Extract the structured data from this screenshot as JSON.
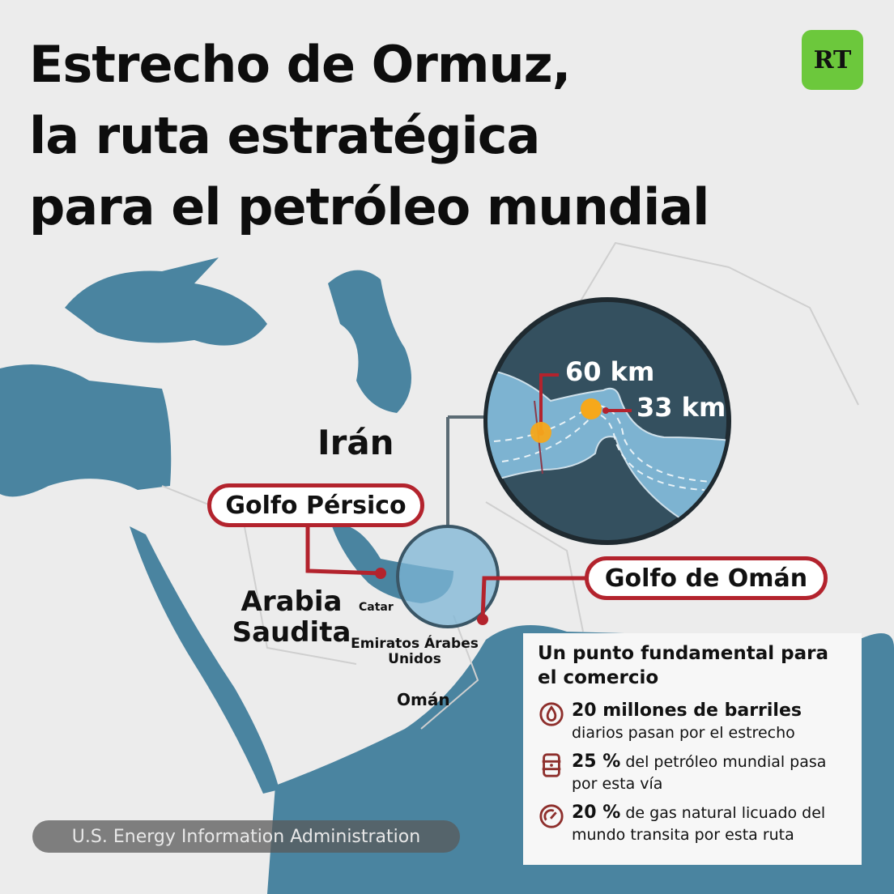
{
  "title": {
    "line1": "Estrecho de Ormuz,",
    "line2": "la ruta estratégica",
    "line3": "para el petróleo mundial"
  },
  "logo": "RT",
  "colors": {
    "sea": "#4a84a0",
    "land": "#ececec",
    "accent": "#b3232d",
    "logo": "#6cc83c",
    "marker": "#f6a81b",
    "inset": "#34505f"
  },
  "labels": {
    "iran": "Irán",
    "arabia": "Arabia Saudita",
    "catar": "Catar",
    "emiratos": "Emiratos Árabes Unidos",
    "oman": "Omán",
    "golfo_persico": "Golfo Pérsico",
    "golfo_oman": "Golfo de Omán"
  },
  "inset": {
    "width1": "60 km",
    "width2": "33 km"
  },
  "info": {
    "heading": "Un punto fundamental para el comercio",
    "items": [
      {
        "icon": "oil-drop-icon",
        "bold": "20 millones de barriles",
        "text": " diarios pasan por el estrecho"
      },
      {
        "icon": "oil-barrel-icon",
        "bold": "25 %",
        "text": " del petróleo mundial pasa por esta vía"
      },
      {
        "icon": "gauge-icon",
        "bold": "20 %",
        "text": " de gas natural licuado del mundo transita por esta ruta"
      }
    ]
  },
  "source": "U.S. Energy Information Administration"
}
